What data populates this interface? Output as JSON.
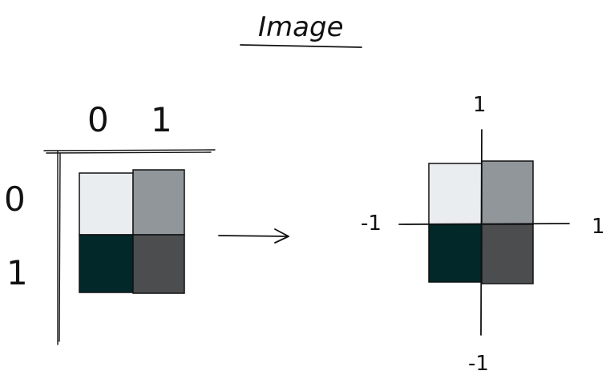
{
  "title": "Image",
  "colors": {
    "ink": "#111111",
    "cell_0_0": "#e9edf0",
    "cell_0_1": "#91969a",
    "cell_1_0": "#02282a",
    "cell_1_1": "#4b4d4f"
  },
  "pixel_grid": {
    "column_labels": [
      "0",
      "1"
    ],
    "row_labels": [
      "0",
      "1"
    ]
  },
  "coordinate_grid": {
    "x_min_label": "-1",
    "x_max_label": "1",
    "y_max_label": "1",
    "y_min_label": "-1"
  },
  "icons": {
    "mapping_arrow": "right-arrow-icon"
  }
}
